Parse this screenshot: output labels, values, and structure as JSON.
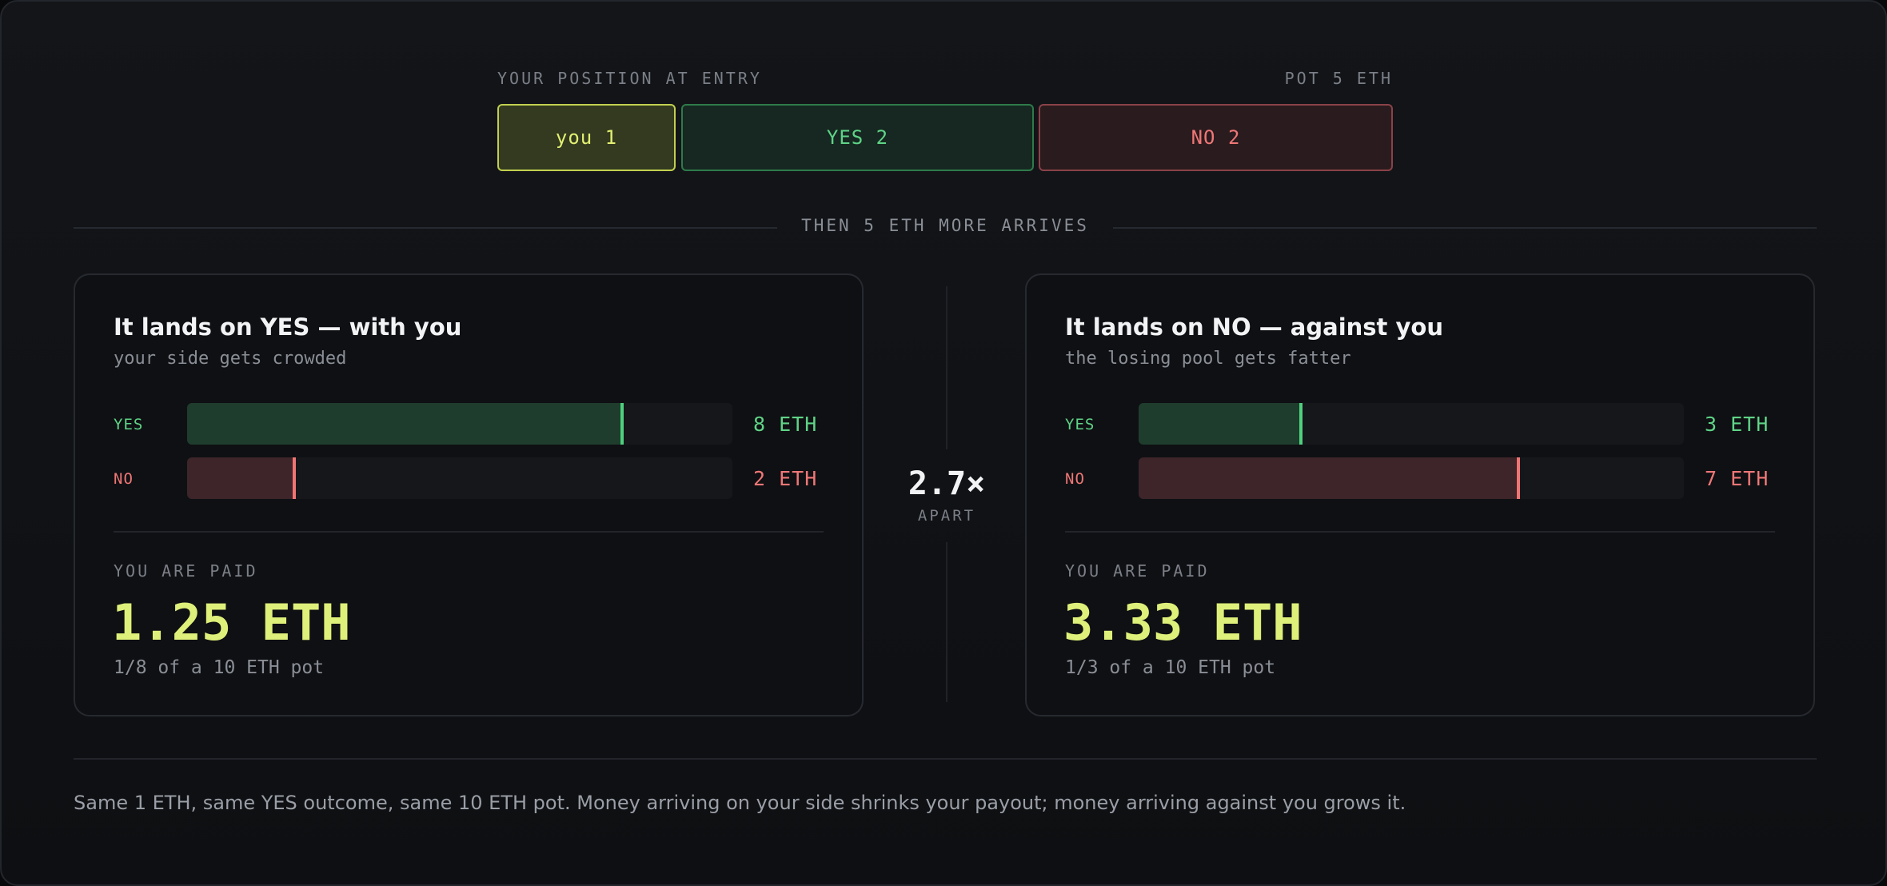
{
  "entry": {
    "label": "YOUR POSITION AT ENTRY",
    "pot_label": "POT 5 ETH",
    "segments": [
      {
        "label": "you 1",
        "value": 1
      },
      {
        "label": "YES 2",
        "value": 2
      },
      {
        "label": "NO 2",
        "value": 2
      }
    ]
  },
  "divider": {
    "label": "THEN 5 ETH MORE ARRIVES"
  },
  "scenarios": [
    {
      "title": "It lands on YES — with you",
      "subtitle": "your side gets crowded",
      "yes": {
        "label": "YES",
        "value": 8,
        "value_label": "8 ETH"
      },
      "no": {
        "label": "NO",
        "value": 2,
        "value_label": "2 ETH"
      },
      "paid_label": "YOU ARE PAID",
      "paid_amount": "1.25 ETH",
      "paid_note": "1/8 of a 10 ETH pot"
    },
    {
      "title": "It lands on NO — against you",
      "subtitle": "the losing pool gets fatter",
      "yes": {
        "label": "YES",
        "value": 3,
        "value_label": "3 ETH"
      },
      "no": {
        "label": "NO",
        "value": 7,
        "value_label": "7 ETH"
      },
      "paid_label": "YOU ARE PAID",
      "paid_amount": "3.33 ETH",
      "paid_note": "1/3 of a 10 ETH pot"
    }
  ],
  "comparison": {
    "value": "2.7×",
    "label": "APART"
  },
  "footer": {
    "text": "Same 1 ETH, same YES outcome, same 10 ETH pot. Money arriving on your side shrinks your payout; money arriving against you grows it."
  },
  "colors": {
    "you": "#e2ef72",
    "yes": "#5fd487",
    "no": "#ef7777"
  }
}
